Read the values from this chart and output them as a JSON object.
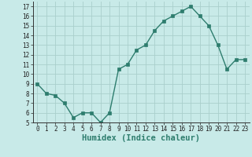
{
  "x": [
    0,
    1,
    2,
    3,
    4,
    5,
    6,
    7,
    8,
    9,
    10,
    11,
    12,
    13,
    14,
    15,
    16,
    17,
    18,
    19,
    20,
    21,
    22,
    23
  ],
  "y": [
    9,
    8,
    7.8,
    7,
    5.5,
    6,
    6,
    5,
    6,
    10.5,
    11,
    12.5,
    13,
    14.5,
    15.5,
    16,
    16.5,
    17,
    16,
    15,
    13,
    10.5,
    11.5,
    11.5
  ],
  "line_color": "#2e7d6e",
  "marker": "s",
  "marker_size": 2.5,
  "bg_color": "#c8eae8",
  "grid_color": "#aacfcc",
  "xlabel": "Humidex (Indice chaleur)",
  "xlim": [
    -0.5,
    23.5
  ],
  "ylim": [
    5,
    17.5
  ],
  "yticks": [
    5,
    6,
    7,
    8,
    9,
    10,
    11,
    12,
    13,
    14,
    15,
    16,
    17
  ],
  "xticks": [
    0,
    1,
    2,
    3,
    4,
    5,
    6,
    7,
    8,
    9,
    10,
    11,
    12,
    13,
    14,
    15,
    16,
    17,
    18,
    19,
    20,
    21,
    22,
    23
  ],
  "tick_fontsize": 5.5,
  "label_fontsize": 7.5,
  "line_width": 1.0
}
